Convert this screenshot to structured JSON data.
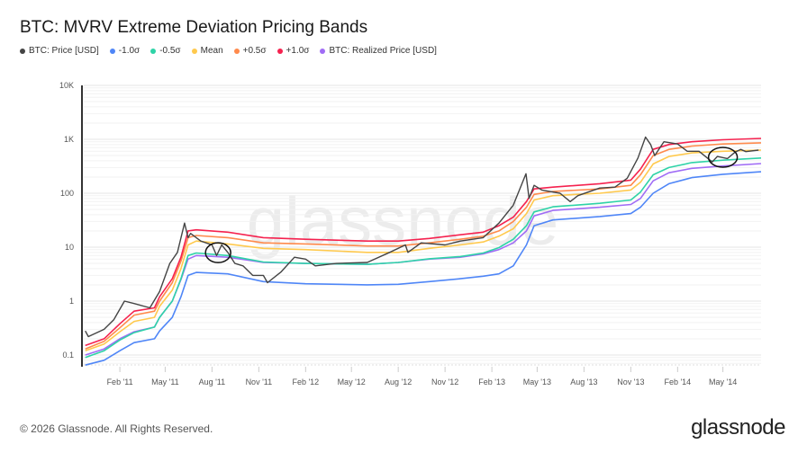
{
  "title": "BTC: MVRV Extreme Deviation Pricing Bands",
  "footer": "© 2026 Glassnode. All Rights Reserved.",
  "logo": "glassnode",
  "watermark": "glassnode",
  "chart_data": {
    "type": "line",
    "title": "BTC: MVRV Extreme Deviation Pricing Bands",
    "xlabel": "",
    "ylabel": "",
    "y_scale": "log",
    "ylim": [
      0.07,
      10000
    ],
    "xlim": [
      "2010-11-22",
      "2014-07-15"
    ],
    "grid": true,
    "legend_position": "top-left",
    "y_ticks": [
      {
        "value": 0.1,
        "label": "0.1"
      },
      {
        "value": 1,
        "label": "1"
      },
      {
        "value": 10,
        "label": "10"
      },
      {
        "value": 100,
        "label": "100"
      },
      {
        "value": 1000,
        "label": "1K"
      },
      {
        "value": 10000,
        "label": "10K"
      }
    ],
    "x_ticks": [
      {
        "date": "2011-02-01",
        "label": "Feb '11"
      },
      {
        "date": "2011-05-01",
        "label": "May '11"
      },
      {
        "date": "2011-08-01",
        "label": "Aug '11"
      },
      {
        "date": "2011-11-01",
        "label": "Nov '11"
      },
      {
        "date": "2012-02-01",
        "label": "Feb '12"
      },
      {
        "date": "2012-05-01",
        "label": "May '12"
      },
      {
        "date": "2012-08-01",
        "label": "Aug '12"
      },
      {
        "date": "2012-11-01",
        "label": "Nov '12"
      },
      {
        "date": "2013-02-01",
        "label": "Feb '13"
      },
      {
        "date": "2013-05-01",
        "label": "May '13"
      },
      {
        "date": "2013-08-01",
        "label": "Aug '13"
      },
      {
        "date": "2013-11-01",
        "label": "Nov '13"
      },
      {
        "date": "2014-02-01",
        "label": "Feb '14"
      },
      {
        "date": "2014-05-01",
        "label": "May '14"
      }
    ],
    "band_dates": [
      "2010-11-25",
      "2011-01-01",
      "2011-02-01",
      "2011-03-01",
      "2011-04-10",
      "2011-04-20",
      "2011-05-15",
      "2011-06-01",
      "2011-06-15",
      "2011-07-01",
      "2011-09-01",
      "2011-11-10",
      "2012-02-01",
      "2012-06-01",
      "2012-08-01",
      "2012-10-01",
      "2012-12-01",
      "2013-01-15",
      "2013-02-15",
      "2013-03-15",
      "2013-04-10",
      "2013-04-25",
      "2013-06-01",
      "2013-09-01",
      "2013-11-01",
      "2013-11-20",
      "2013-12-15",
      "2014-01-15",
      "2014-03-01",
      "2014-05-01",
      "2014-07-15"
    ],
    "series": [
      {
        "name": "-1.0σ",
        "color": "#4f86f7",
        "values": [
          0.065,
          0.08,
          0.12,
          0.17,
          0.2,
          0.28,
          0.5,
          1.2,
          3,
          3.4,
          3.2,
          2.3,
          2.1,
          2,
          2.05,
          2.3,
          2.6,
          2.9,
          3.2,
          4.5,
          11,
          25,
          32,
          37,
          42,
          55,
          100,
          150,
          195,
          225,
          250
        ]
      },
      {
        "name": "-0.5σ",
        "color": "#2ed3a7",
        "values": [
          0.09,
          0.12,
          0.19,
          0.26,
          0.33,
          0.5,
          1.0,
          2.6,
          7,
          7.8,
          7,
          5.3,
          5,
          4.8,
          5.2,
          6.1,
          6.7,
          7.8,
          9.8,
          14,
          25,
          45,
          56,
          65,
          75,
          105,
          220,
          300,
          370,
          410,
          450
        ]
      },
      {
        "name": "Mean",
        "color": "#ffc94d",
        "values": [
          0.12,
          0.16,
          0.27,
          0.42,
          0.5,
          0.8,
          1.6,
          4,
          11,
          13,
          11.5,
          9.5,
          9,
          8,
          8,
          9.5,
          11,
          12.5,
          16,
          22,
          42,
          75,
          90,
          100,
          115,
          160,
          350,
          480,
          560,
          600,
          630
        ]
      },
      {
        "name": "+0.5σ",
        "color": "#ff8a4c",
        "values": [
          0.13,
          0.18,
          0.32,
          0.55,
          0.65,
          1.0,
          2.2,
          5.5,
          15,
          16.5,
          15,
          12,
          11.5,
          10.5,
          10.5,
          12,
          14,
          16,
          20,
          30,
          55,
          95,
          108,
          120,
          140,
          220,
          500,
          650,
          750,
          820,
          860
        ]
      },
      {
        "name": "+1.0σ",
        "color": "#f5224f",
        "values": [
          0.15,
          0.2,
          0.38,
          0.65,
          0.75,
          1.2,
          2.6,
          6.5,
          20,
          21,
          19,
          15,
          14,
          13,
          13,
          14.5,
          17,
          19,
          25,
          36,
          70,
          120,
          130,
          150,
          175,
          280,
          650,
          800,
          900,
          980,
          1040
        ]
      },
      {
        "name": "BTC: Realized Price [USD]",
        "color": "#a06cf5",
        "values": [
          0.1,
          0.13,
          0.2,
          0.27,
          0.33,
          0.5,
          1.0,
          2.5,
          6,
          7,
          6.5,
          5.2,
          5,
          4.8,
          5.2,
          6,
          6.5,
          7.5,
          9,
          12,
          20,
          38,
          48,
          55,
          62,
          80,
          170,
          240,
          290,
          320,
          355
        ]
      }
    ],
    "price": {
      "name": "BTC: Price [USD]",
      "color": "#444444",
      "points": [
        [
          "2010-11-25",
          0.28
        ],
        [
          "2010-12-01",
          0.22
        ],
        [
          "2011-01-01",
          0.3
        ],
        [
          "2011-01-20",
          0.45
        ],
        [
          "2011-02-10",
          1.0
        ],
        [
          "2011-03-01",
          0.9
        ],
        [
          "2011-04-01",
          0.75
        ],
        [
          "2011-04-20",
          1.5
        ],
        [
          "2011-05-10",
          5
        ],
        [
          "2011-05-25",
          8
        ],
        [
          "2011-06-08",
          28
        ],
        [
          "2011-06-15",
          15
        ],
        [
          "2011-06-20",
          18
        ],
        [
          "2011-07-10",
          13
        ],
        [
          "2011-08-01",
          11
        ],
        [
          "2011-08-10",
          7
        ],
        [
          "2011-08-20",
          11
        ],
        [
          "2011-09-01",
          8
        ],
        [
          "2011-09-15",
          5
        ],
        [
          "2011-10-01",
          4.5
        ],
        [
          "2011-10-20",
          3
        ],
        [
          "2011-11-10",
          3
        ],
        [
          "2011-11-18",
          2.2
        ],
        [
          "2011-12-15",
          3.5
        ],
        [
          "2012-01-10",
          6.5
        ],
        [
          "2012-02-01",
          6
        ],
        [
          "2012-02-20",
          4.5
        ],
        [
          "2012-04-01",
          5
        ],
        [
          "2012-06-01",
          5.2
        ],
        [
          "2012-07-15",
          8
        ],
        [
          "2012-08-15",
          11
        ],
        [
          "2012-08-20",
          8
        ],
        [
          "2012-09-15",
          12
        ],
        [
          "2012-11-01",
          11
        ],
        [
          "2012-12-01",
          13
        ],
        [
          "2013-01-15",
          15
        ],
        [
          "2013-02-15",
          28
        ],
        [
          "2013-03-15",
          60
        ],
        [
          "2013-04-09",
          230
        ],
        [
          "2013-04-15",
          80
        ],
        [
          "2013-04-25",
          140
        ],
        [
          "2013-05-10",
          115
        ],
        [
          "2013-06-15",
          100
        ],
        [
          "2013-07-05",
          70
        ],
        [
          "2013-07-20",
          90
        ],
        [
          "2013-09-01",
          125
        ],
        [
          "2013-10-01",
          130
        ],
        [
          "2013-10-25",
          190
        ],
        [
          "2013-11-15",
          450
        ],
        [
          "2013-11-30",
          1100
        ],
        [
          "2013-12-10",
          800
        ],
        [
          "2013-12-18",
          500
        ],
        [
          "2014-01-05",
          900
        ],
        [
          "2014-02-01",
          820
        ],
        [
          "2014-02-20",
          600
        ],
        [
          "2014-03-15",
          600
        ],
        [
          "2014-04-10",
          380
        ],
        [
          "2014-04-20",
          480
        ],
        [
          "2014-05-10",
          440
        ],
        [
          "2014-05-25",
          580
        ],
        [
          "2014-06-05",
          650
        ],
        [
          "2014-06-15",
          590
        ],
        [
          "2014-07-10",
          630
        ]
      ]
    },
    "annotations": [
      {
        "type": "circle",
        "date": "2011-08-13",
        "value": 7.9
      },
      {
        "type": "circle",
        "date": "2014-05-01",
        "value": 464
      }
    ]
  },
  "legend": [
    {
      "label": "BTC: Price [USD]",
      "color": "#444444"
    },
    {
      "label": "-1.0σ",
      "color": "#4f86f7"
    },
    {
      "label": "-0.5σ",
      "color": "#2ed3a7"
    },
    {
      "label": "Mean",
      "color": "#ffc94d"
    },
    {
      "label": "+0.5σ",
      "color": "#ff8a4c"
    },
    {
      "label": "+1.0σ",
      "color": "#f5224f"
    },
    {
      "label": "BTC: Realized Price [USD]",
      "color": "#a06cf5"
    }
  ]
}
